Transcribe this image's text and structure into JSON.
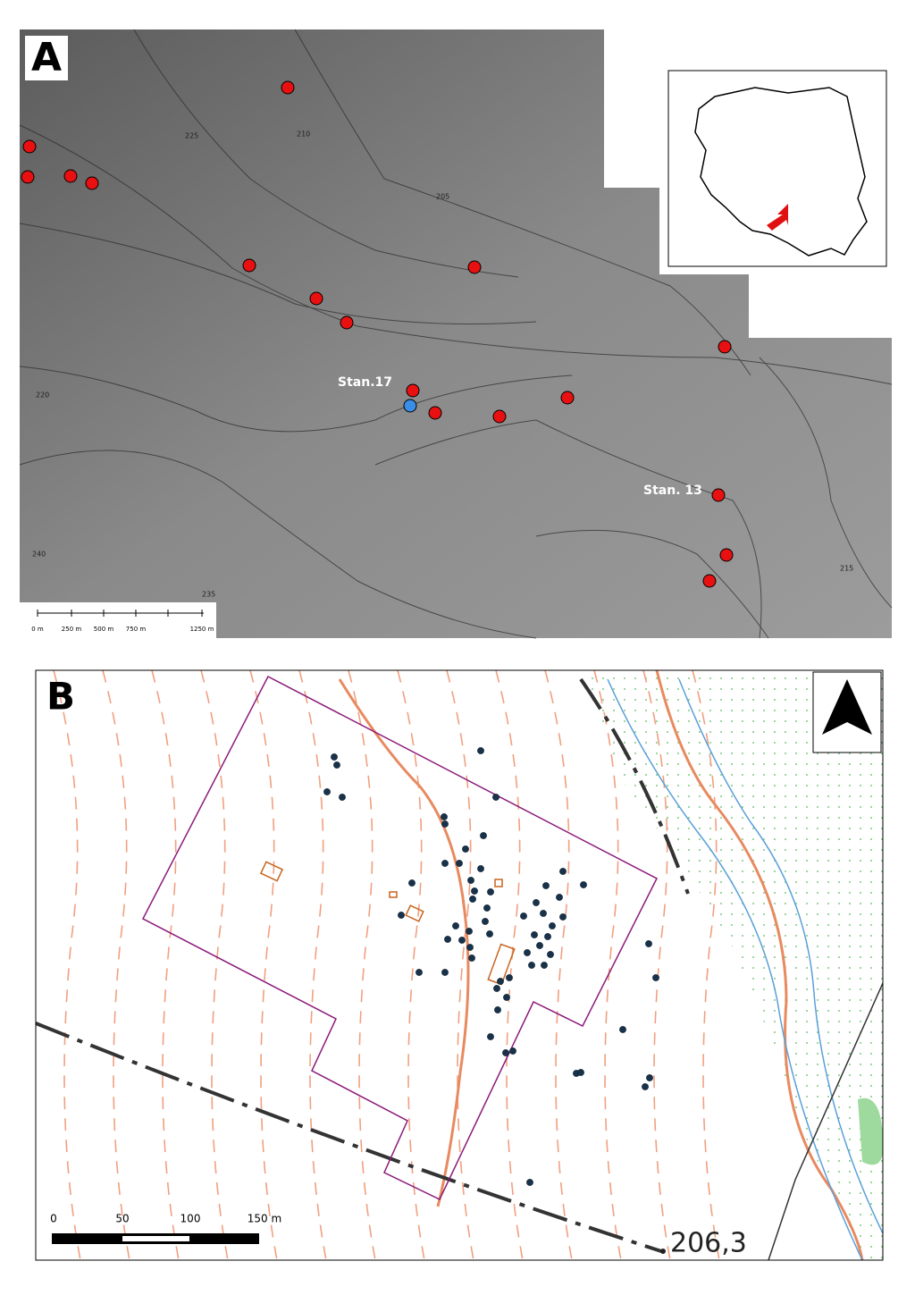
{
  "panel_a": {
    "label": "A",
    "site_labels": [
      "Stan.17",
      "Stan. 13"
    ],
    "contour_labels": [
      "225",
      "210",
      "205",
      "220",
      "240",
      "235",
      "215"
    ],
    "scale_labels": [
      "0 m",
      "250 m",
      "500 m",
      "750 m",
      "1250 m"
    ]
  },
  "panel_b": {
    "label": "B",
    "scale_labels": [
      "0",
      "50",
      "100",
      "150 m"
    ],
    "elevation_label": "206,3"
  }
}
